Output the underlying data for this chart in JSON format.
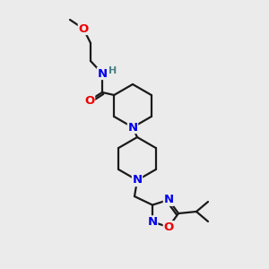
{
  "bg_color": "#ebebeb",
  "bond_color": "#1a1a1a",
  "N_color": "#0000ee",
  "O_color": "#ee0000",
  "H_color": "#4a8080",
  "bond_width": 1.6,
  "font_size_atom": 9.5,
  "font_size_H": 8.0,
  "figsize": [
    3.0,
    3.0
  ],
  "dpi": 100,
  "xlim": [
    0,
    300
  ],
  "ylim": [
    0,
    300
  ]
}
